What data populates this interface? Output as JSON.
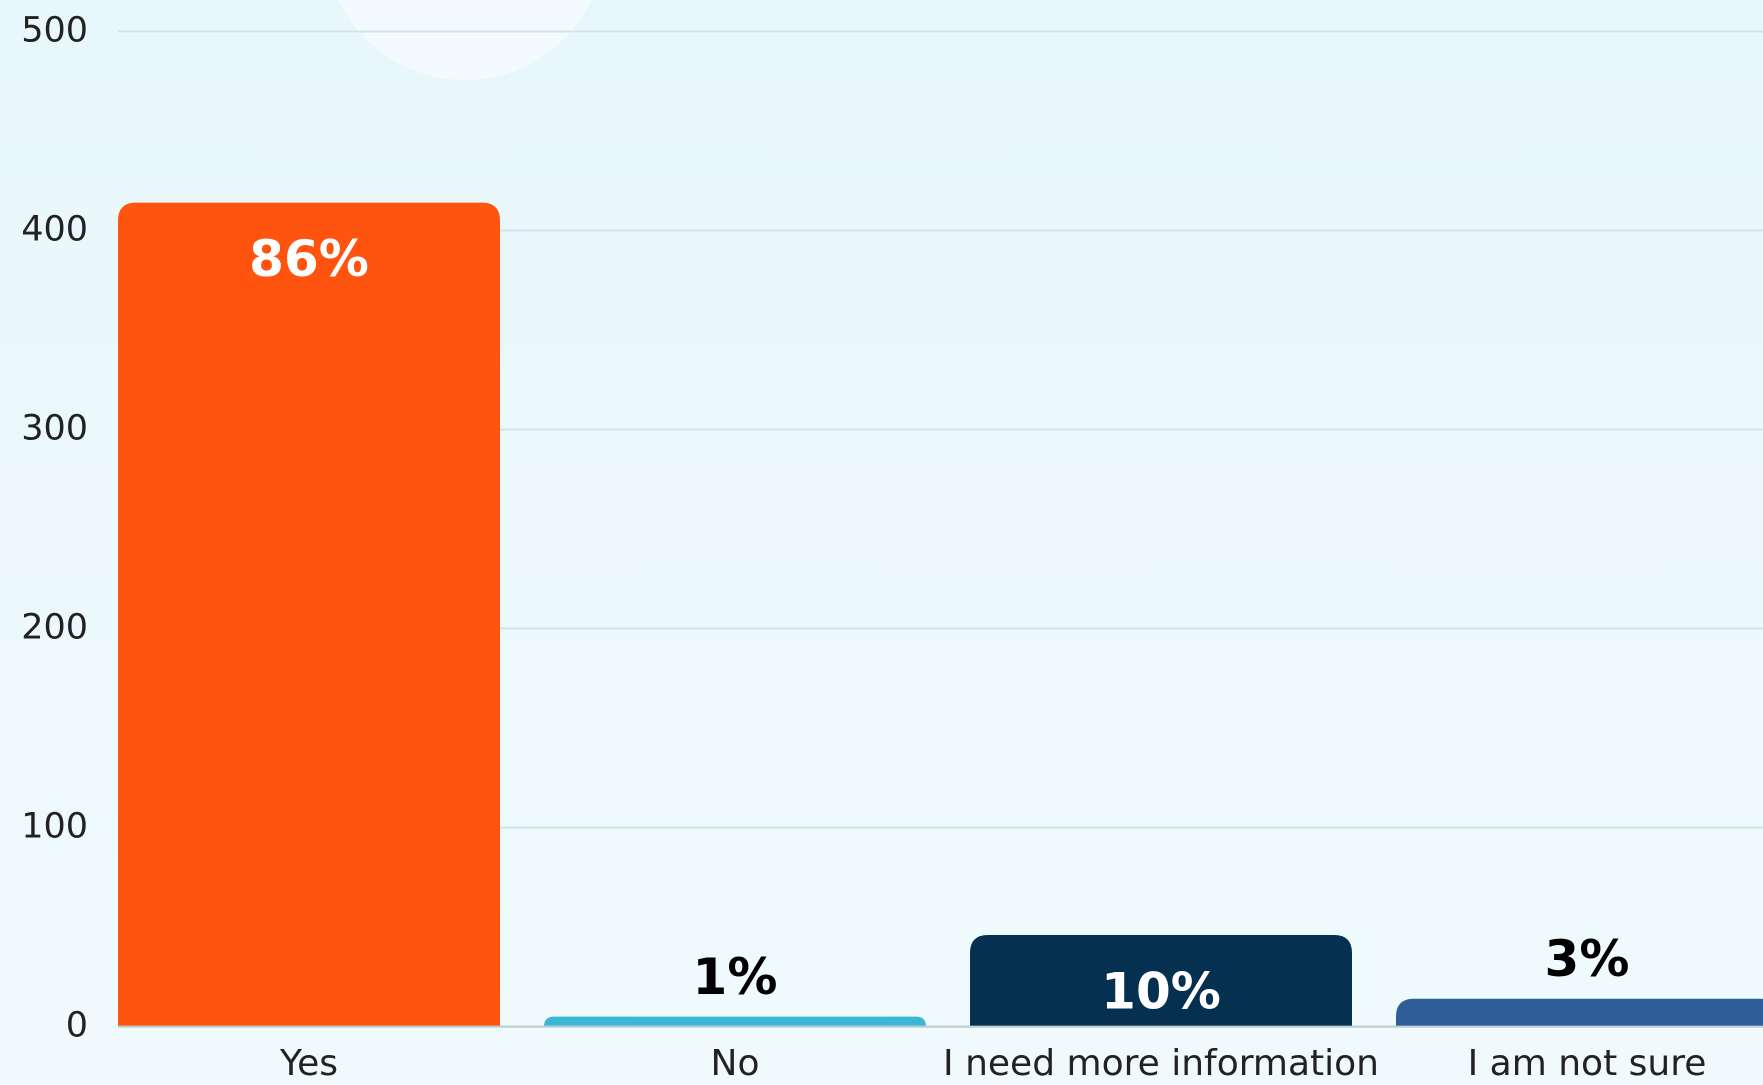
{
  "chart_data": {
    "type": "bar",
    "categories": [
      "Yes",
      "No",
      "I need more information",
      "I am not sure"
    ],
    "values": [
      414,
      5,
      46,
      14
    ],
    "percent_labels": [
      "86%",
      "1%",
      "10%",
      "3%"
    ],
    "colors": [
      "#ff5410",
      "#3bb7d6",
      "#06304f",
      "#2f5d96"
    ],
    "ylim": [
      0,
      500
    ],
    "yticks": [
      0,
      100,
      200,
      300,
      400,
      500
    ],
    "grid": true
  }
}
